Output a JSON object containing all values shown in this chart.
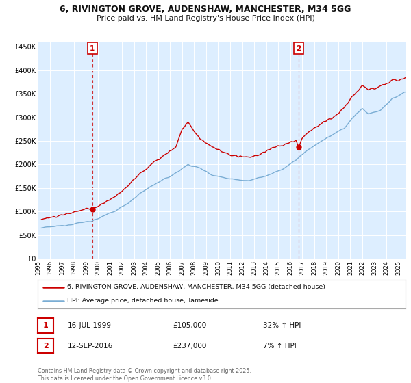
{
  "title_line1": "6, RIVINGTON GROVE, AUDENSHAW, MANCHESTER, M34 5GG",
  "title_line2": "Price paid vs. HM Land Registry's House Price Index (HPI)",
  "ylabel_ticks": [
    "£0",
    "£50K",
    "£100K",
    "£150K",
    "£200K",
    "£250K",
    "£300K",
    "£350K",
    "£400K",
    "£450K"
  ],
  "ytick_values": [
    0,
    50000,
    100000,
    150000,
    200000,
    250000,
    300000,
    350000,
    400000,
    450000
  ],
  "ylim": [
    0,
    460000
  ],
  "xlim_start": 1995.3,
  "xlim_end": 2025.6,
  "xtick_years": [
    1995,
    1996,
    1997,
    1998,
    1999,
    2000,
    2001,
    2002,
    2003,
    2004,
    2005,
    2006,
    2007,
    2008,
    2009,
    2010,
    2011,
    2012,
    2013,
    2014,
    2015,
    2016,
    2017,
    2018,
    2019,
    2020,
    2021,
    2022,
    2023,
    2024,
    2025
  ],
  "red_color": "#cc0000",
  "blue_color": "#7aadd4",
  "chart_bg": "#ddeeff",
  "annotation_color": "#cc0000",
  "grid_color": "#ffffff",
  "background_color": "#ffffff",
  "legend_label_red": "6, RIVINGTON GROVE, AUDENSHAW, MANCHESTER, M34 5GG (detached house)",
  "legend_label_blue": "HPI: Average price, detached house, Tameside",
  "sale1_date": "16-JUL-1999",
  "sale1_price": "£105,000",
  "sale1_hpi": "32% ↑ HPI",
  "sale1_year": 1999.54,
  "sale1_value": 105000,
  "sale2_date": "12-SEP-2016",
  "sale2_price": "£237,000",
  "sale2_hpi": "7% ↑ HPI",
  "sale2_year": 2016.71,
  "sale2_value": 237000,
  "footnote": "Contains HM Land Registry data © Crown copyright and database right 2025.\nThis data is licensed under the Open Government Licence v3.0."
}
